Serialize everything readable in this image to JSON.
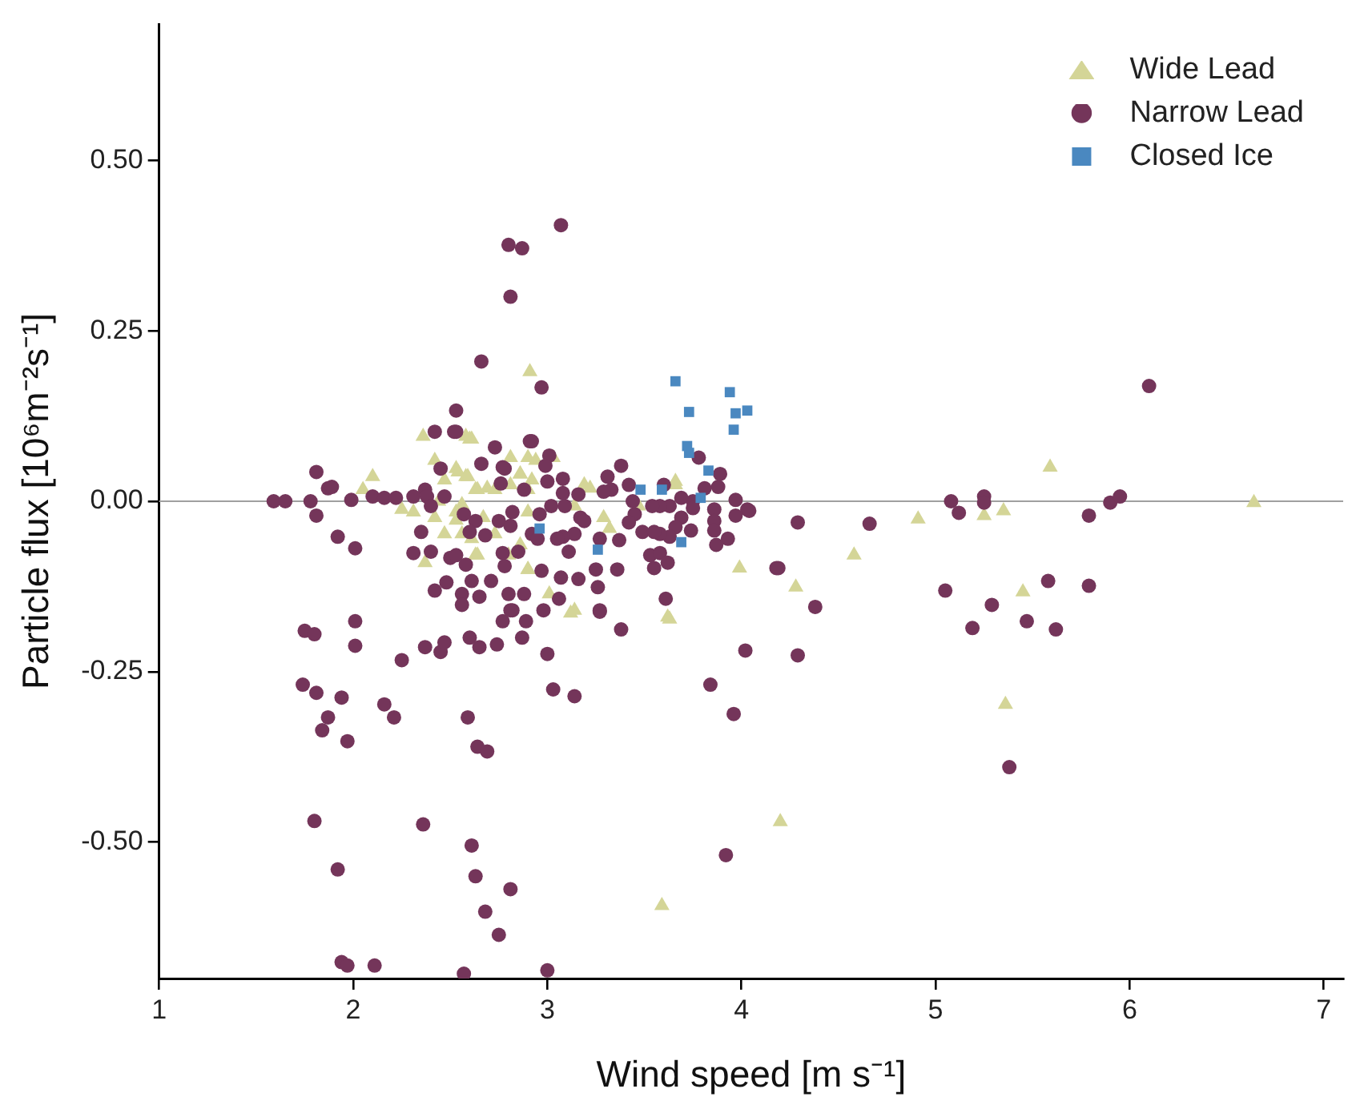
{
  "chart_data": {
    "type": "scatter",
    "xlabel": "Wind speed [m s⁻¹]",
    "ylabel": "Particle flux [10⁶m⁻²s⁻¹]",
    "xlim": [
      1,
      7.1
    ],
    "xticks": [
      1,
      2,
      3,
      4,
      5,
      6,
      7
    ],
    "ylim": [
      -0.7,
      0.7
    ],
    "yticks": [
      {
        "value": -0.5,
        "label": "-0.50"
      },
      {
        "value": -0.25,
        "label": "-0.25"
      },
      {
        "value": 0,
        "label": "0.00"
      },
      {
        "value": 0.25,
        "label": "0.25"
      },
      {
        "value": 0.5,
        "label": "0.50"
      }
    ],
    "grid": false,
    "legend": "top right",
    "ref_lines": [
      {
        "axis": "y",
        "value": 0,
        "color": "#a0a0a0"
      }
    ],
    "series": [
      {
        "name": "Wide Lead",
        "color": "#d4d597",
        "marker": "triangle",
        "x": [
          2.91,
          3.59,
          4.2,
          3.62,
          3.12,
          5.59,
          6.64,
          4.91,
          4.58,
          4.28,
          5.25,
          5.35,
          5.45,
          5.36,
          3.63,
          3.99,
          3.66,
          2.36,
          2.6,
          2.1,
          2.05,
          2.42,
          2.53,
          2.59,
          2.47,
          2.64,
          2.69,
          2.81,
          2.86,
          2.25,
          2.31,
          2.42,
          2.47,
          2.53,
          2.61,
          2.64,
          2.37,
          2.73,
          2.8,
          2.9,
          2.44,
          2.56,
          2.81,
          2.9,
          2.58,
          2.61,
          2.54,
          2.58,
          2.63,
          2.73,
          2.9,
          2.94,
          3.03,
          2.86,
          2.92,
          2.9,
          2.53,
          2.67,
          2.56,
          2.63,
          2.86,
          3.14,
          3.19,
          3.22,
          3.29,
          3.32,
          3.01,
          3.14,
          3.66,
          3.47,
          2.9
        ],
        "values": [
          0.19,
          -0.593,
          -0.47,
          -0.17,
          -0.164,
          0.05,
          -0.002,
          -0.026,
          -0.079,
          -0.126,
          -0.021,
          -0.014,
          -0.133,
          -0.298,
          -0.173,
          -0.098,
          0.029,
          0.095,
          0.091,
          0.036,
          0.017,
          0.06,
          0.048,
          0.036,
          0.031,
          0.017,
          0.019,
          0.064,
          0.04,
          -0.012,
          -0.016,
          -0.024,
          -0.048,
          -0.028,
          -0.055,
          -0.079,
          -0.09,
          -0.048,
          -0.079,
          -0.1,
          0.0,
          -0.005,
          0.024,
          -0.016,
          0.095,
          0.091,
          0.043,
          0.036,
          0.017,
          0.017,
          0.064,
          0.06,
          0.064,
          0.04,
          0.031,
          0.017,
          -0.016,
          -0.024,
          -0.048,
          -0.079,
          -0.064,
          -0.007,
          0.024,
          0.019,
          -0.024,
          -0.04,
          -0.136,
          -0.16,
          0.024,
          -0.007,
          -0.1
        ]
      },
      {
        "name": "Narrow Lead",
        "color": "#74355a",
        "marker": "circle",
        "x": [
          3.07,
          2.8,
          2.87,
          2.81,
          2.66,
          2.97,
          2.53,
          2.53,
          2.42,
          2.52,
          1.81,
          1.87,
          1.89,
          1.59,
          1.65,
          1.78,
          1.81,
          1.92,
          2.01,
          1.99,
          2.1,
          2.16,
          2.22,
          2.31,
          2.37,
          2.38,
          2.47,
          2.45,
          2.66,
          2.73,
          2.78,
          2.76,
          2.88,
          2.91,
          2.4,
          2.57,
          2.63,
          2.6,
          2.68,
          2.75,
          2.82,
          2.81,
          2.35,
          2.31,
          2.4,
          2.5,
          2.53,
          2.58,
          2.77,
          2.78,
          2.85,
          2.48,
          2.61,
          2.71,
          2.42,
          2.56,
          2.65,
          2.8,
          2.88,
          2.82,
          2.92,
          3.01,
          2.99,
          2.77,
          3.0,
          3.08,
          3.08,
          3.16,
          3.31,
          3.38,
          3.42,
          3.33,
          3.29,
          3.6,
          3.78,
          3.89,
          3.88,
          3.97,
          4.03,
          3.97,
          3.86,
          3.86,
          3.86,
          3.93,
          3.87,
          3.75,
          3.75,
          3.81,
          3.69,
          3.63,
          3.58,
          3.54,
          3.69,
          3.66,
          3.74,
          3.63,
          3.58,
          3.49,
          3.45,
          3.42,
          3.55,
          3.44,
          3.53,
          3.58,
          3.55,
          3.62,
          3.37,
          3.27,
          3.36,
          3.25,
          3.26,
          3.16,
          3.27,
          3.07,
          3.06,
          2.97,
          2.96,
          3.02,
          3.09,
          3.17,
          3.19,
          3.14,
          3.08,
          3.05,
          3.11,
          2.92,
          2.95,
          3.61,
          4.18,
          1.75,
          1.8,
          2.01,
          2.01,
          1.74,
          1.81,
          1.94,
          1.87,
          1.84,
          1.97,
          2.16,
          2.21,
          2.25,
          2.37,
          2.45,
          2.47,
          2.6,
          2.65,
          2.74,
          2.87,
          2.56,
          2.77,
          2.89,
          2.81,
          2.98,
          3.0,
          3.03,
          3.14,
          3.27,
          3.38,
          3.84,
          3.96,
          4.02,
          2.59,
          2.64,
          2.69,
          1.8,
          1.92,
          2.36,
          2.61,
          2.63,
          2.81,
          2.68,
          2.75,
          1.94,
          1.97,
          2.11,
          2.57,
          3.0,
          3.92,
          4.04,
          4.29,
          4.66,
          4.19,
          4.38,
          4.29,
          5.08,
          5.25,
          5.25,
          5.12,
          5.79,
          5.9,
          5.95,
          6.1,
          5.05,
          5.29,
          5.58,
          5.79,
          5.19,
          5.47,
          5.62,
          5.38
        ],
        "values": [
          0.405,
          0.376,
          0.371,
          0.3,
          0.205,
          0.167,
          0.133,
          0.102,
          0.102,
          0.102,
          0.043,
          0.019,
          0.021,
          0.0,
          0.0,
          0.0,
          -0.021,
          -0.052,
          -0.069,
          0.002,
          0.007,
          0.005,
          0.005,
          0.007,
          0.017,
          0.007,
          0.007,
          0.048,
          0.055,
          0.079,
          0.048,
          0.026,
          0.017,
          0.088,
          -0.007,
          -0.019,
          -0.029,
          -0.045,
          -0.05,
          -0.029,
          -0.016,
          -0.036,
          -0.045,
          -0.076,
          -0.074,
          -0.083,
          -0.079,
          -0.093,
          -0.076,
          -0.095,
          -0.074,
          -0.119,
          -0.117,
          -0.117,
          -0.131,
          -0.136,
          -0.14,
          -0.136,
          -0.136,
          -0.16,
          0.088,
          0.067,
          0.052,
          0.05,
          0.029,
          0.033,
          0.012,
          0.01,
          0.036,
          0.052,
          0.024,
          0.017,
          0.014,
          0.024,
          0.064,
          0.04,
          0.021,
          0.002,
          -0.012,
          -0.021,
          -0.012,
          -0.029,
          -0.043,
          -0.055,
          -0.064,
          0.0,
          -0.01,
          0.019,
          0.005,
          -0.007,
          -0.007,
          -0.007,
          -0.024,
          -0.038,
          -0.043,
          -0.052,
          -0.048,
          -0.045,
          -0.019,
          -0.031,
          -0.045,
          0.0,
          -0.079,
          -0.076,
          -0.098,
          -0.09,
          -0.057,
          -0.055,
          -0.1,
          -0.1,
          -0.126,
          -0.114,
          -0.16,
          -0.112,
          -0.143,
          -0.102,
          -0.019,
          -0.007,
          -0.007,
          -0.024,
          -0.029,
          -0.048,
          -0.052,
          -0.055,
          -0.074,
          -0.048,
          -0.055,
          -0.143,
          -0.098,
          -0.19,
          -0.195,
          -0.176,
          -0.212,
          -0.269,
          -0.281,
          -0.288,
          -0.317,
          -0.336,
          -0.352,
          -0.298,
          -0.317,
          -0.233,
          -0.214,
          -0.221,
          -0.207,
          -0.2,
          -0.214,
          -0.21,
          -0.2,
          -0.152,
          -0.176,
          -0.176,
          -0.16,
          -0.16,
          -0.224,
          -0.276,
          -0.286,
          -0.162,
          -0.188,
          -0.269,
          -0.312,
          -0.219,
          -0.317,
          -0.36,
          -0.367,
          -0.469,
          -0.54,
          -0.474,
          -0.505,
          -0.55,
          -0.569,
          -0.602,
          -0.636,
          -0.676,
          -0.681,
          -0.681,
          -0.693,
          -0.688,
          -0.519,
          -0.014,
          -0.031,
          -0.033,
          -0.098,
          -0.155,
          -0.226,
          0.0,
          0.007,
          -0.002,
          -0.017,
          -0.021,
          -0.002,
          0.007,
          0.169,
          -0.131,
          -0.152,
          -0.117,
          -0.124,
          -0.186,
          -0.176,
          -0.188,
          -0.39
        ]
      },
      {
        "name": "Closed Ice",
        "color": "#4a88c0",
        "marker": "square",
        "x": [
          3.66,
          3.94,
          3.73,
          3.97,
          4.03,
          3.96,
          3.72,
          3.73,
          3.83,
          3.48,
          3.59,
          3.79,
          2.96,
          3.26,
          3.69
        ],
        "values": [
          0.176,
          0.16,
          0.131,
          0.129,
          0.133,
          0.105,
          0.081,
          0.071,
          0.045,
          0.017,
          0.017,
          0.005,
          -0.04,
          -0.071,
          -0.06
        ]
      }
    ]
  }
}
